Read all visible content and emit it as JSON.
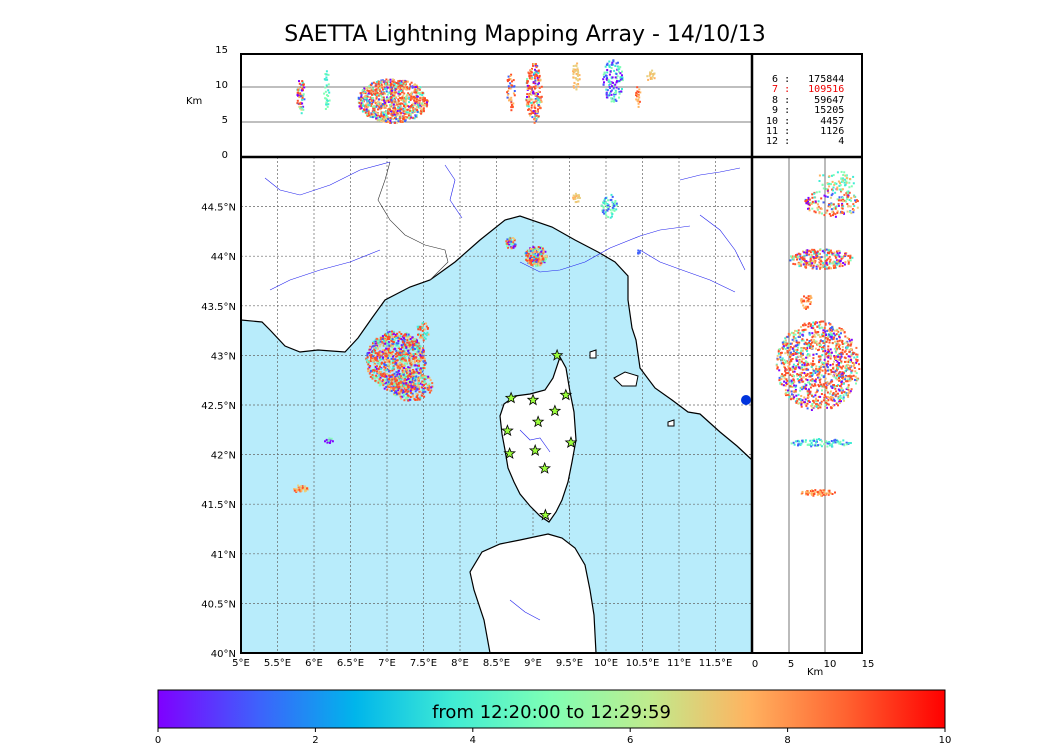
{
  "title": "SAETTA Lightning Mapping Array - 14/10/13",
  "alt_axis": {
    "label": "Km",
    "ticks": [
      "0",
      "5",
      "10",
      "15"
    ]
  },
  "map": {
    "lon_ticks": [
      "5°E",
      "5.5°E",
      "6°E",
      "6.5°E",
      "7°E",
      "7.5°E",
      "8°E",
      "8.5°E",
      "9°E",
      "9.5°E",
      "10°E",
      "10.5°E",
      "11°E",
      "11.5°E"
    ],
    "lat_ticks": [
      "40°N",
      "40.5°N",
      "41°N",
      "41.5°N",
      "42°N",
      "42.5°N",
      "43°N",
      "43.5°N",
      "44°N",
      "44.5°N"
    ],
    "lon_range": [
      5,
      12
    ],
    "lat_range": [
      40,
      45
    ],
    "sea_color": "#b8ecfb",
    "land_color": "#ffffff"
  },
  "side_panel": {
    "xlabel": "Km",
    "ticks": [
      "0",
      "5",
      "10",
      "15"
    ]
  },
  "stats": [
    {
      "key": "6",
      "value": "175844",
      "highlight": false
    },
    {
      "key": "7",
      "value": "109516",
      "highlight": true
    },
    {
      "key": "8",
      "value": "59647",
      "highlight": false
    },
    {
      "key": "9",
      "value": "15205",
      "highlight": false
    },
    {
      "key": "10",
      "value": "4457",
      "highlight": false
    },
    {
      "key": "11",
      "value": "1126",
      "highlight": false
    },
    {
      "key": "12",
      "value": "4",
      "highlight": false
    }
  ],
  "stations": [
    {
      "lon": 8.7,
      "lat": 42.57
    },
    {
      "lon": 9.0,
      "lat": 42.55
    },
    {
      "lon": 9.33,
      "lat": 43.0
    },
    {
      "lon": 9.45,
      "lat": 42.6
    },
    {
      "lon": 9.3,
      "lat": 42.44
    },
    {
      "lon": 9.07,
      "lat": 42.33
    },
    {
      "lon": 8.65,
      "lat": 42.24
    },
    {
      "lon": 9.52,
      "lat": 42.12
    },
    {
      "lon": 8.68,
      "lat": 42.01
    },
    {
      "lon": 9.03,
      "lat": 42.04
    },
    {
      "lon": 9.16,
      "lat": 41.86
    },
    {
      "lon": 9.17,
      "lat": 41.39
    }
  ],
  "colorbar": {
    "label": "from 12:20:00 to 12:29:59",
    "ticks": [
      "0",
      "2",
      "4",
      "6",
      "8",
      "10"
    ],
    "colors": [
      "#7f00ff",
      "#3f60fc",
      "#00b5eb",
      "#40ecd4",
      "#80ffb4",
      "#c0eb8d",
      "#ffb360",
      "#ff6230",
      "#ff0000"
    ]
  }
}
